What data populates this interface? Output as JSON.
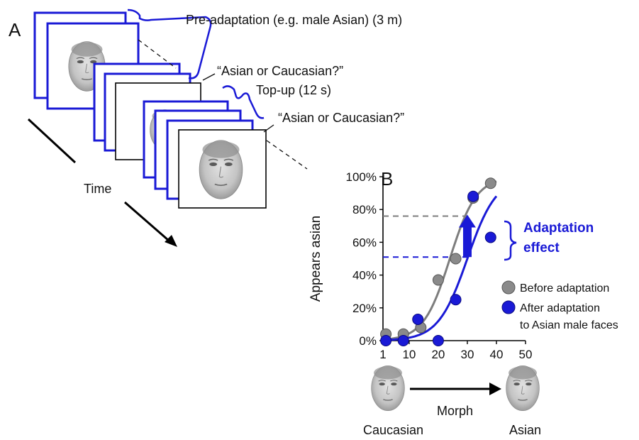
{
  "panel_a": {
    "label": "A",
    "pre_adaptation": "Pre-adaptation (e.g. male Asian) (3 m)",
    "question_1": "“Asian or Caucasian?”",
    "top_up": "Top-up (12 s)",
    "question_2": "“Asian or Caucasian?”",
    "time_label": "Time"
  },
  "panel_b": {
    "label": "B",
    "adaptation_effect_line1": "Adaptation",
    "adaptation_effect_line2": "effect",
    "legend": {
      "before": "Before adaptation",
      "after_line1": "After adaptation",
      "after_line2": "to Asian male faces"
    },
    "morph_label": "Morph",
    "caucasian_label": "Caucasian",
    "asian_label": "Asian"
  },
  "colors": {
    "blue": "#1a1ad6",
    "gray_dot": "#8a8a8a",
    "gray_curve": "#7d7d7d"
  },
  "chart_data": {
    "type": "scatter",
    "title": "",
    "xlabel": "",
    "ylabel": "Appears asian",
    "xlim": [
      1,
      50
    ],
    "ylim": [
      0,
      100
    ],
    "x_ticks": [
      "1",
      "10",
      "20",
      "30",
      "40",
      "50"
    ],
    "y_ticks": [
      "0%",
      "20%",
      "40%",
      "60%",
      "80%",
      "100%"
    ],
    "series": [
      {
        "name": "Before adaptation",
        "color": "#8a8a8a",
        "x": [
          2,
          8,
          14,
          20,
          26,
          32,
          38
        ],
        "y": [
          4,
          4,
          8,
          37,
          50,
          87,
          96
        ],
        "fit_pse": 24,
        "fit_slope": 0.22
      },
      {
        "name": "After adaptation to Asian male faces",
        "color": "#1a1ad6",
        "x": [
          2,
          8,
          13,
          20,
          26,
          32,
          38
        ],
        "y": [
          0,
          0,
          13,
          0,
          25,
          88,
          63
        ],
        "fit_pse": 30,
        "fit_slope": 0.2
      }
    ],
    "reference_lines": [
      {
        "color": "gray",
        "y": 76
      },
      {
        "color": "blue",
        "y": 51
      }
    ],
    "arrow": {
      "x": 30,
      "y_from": 51,
      "y_to": 76
    }
  }
}
